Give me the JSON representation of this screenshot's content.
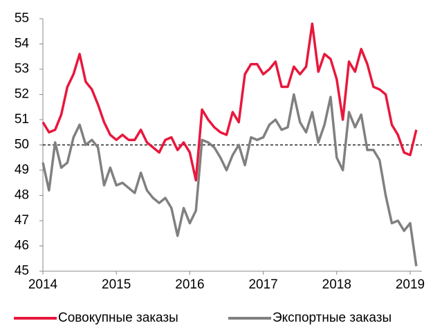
{
  "chart_data": {
    "type": "line",
    "categories": [
      "2014",
      null,
      null,
      null,
      null,
      null,
      null,
      null,
      null,
      null,
      null,
      null,
      "2015",
      null,
      null,
      null,
      null,
      null,
      null,
      null,
      null,
      null,
      null,
      null,
      "2016",
      null,
      null,
      null,
      null,
      null,
      null,
      null,
      null,
      null,
      null,
      null,
      "2017",
      null,
      null,
      null,
      null,
      null,
      null,
      null,
      null,
      null,
      null,
      null,
      "2018",
      null,
      null,
      null,
      null,
      null,
      null,
      null,
      null,
      null,
      null,
      null,
      "2019",
      null
    ],
    "series": [
      {
        "name": "Совокупные заказы",
        "color": "#e8173c",
        "values": [
          50.9,
          50.5,
          50.6,
          51.2,
          52.3,
          52.8,
          53.6,
          52.5,
          52.2,
          51.6,
          50.9,
          50.4,
          50.2,
          50.4,
          50.2,
          50.2,
          50.6,
          50.1,
          49.9,
          49.7,
          50.2,
          50.3,
          49.8,
          50.1,
          49.7,
          48.6,
          51.4,
          51.0,
          50.7,
          50.5,
          50.4,
          51.3,
          50.9,
          52.8,
          53.2,
          53.2,
          52.8,
          53.0,
          53.3,
          52.3,
          52.3,
          53.1,
          52.8,
          53.1,
          54.8,
          52.9,
          53.6,
          53.4,
          52.6,
          51.0,
          53.3,
          52.9,
          53.8,
          53.2,
          52.3,
          52.2,
          52.0,
          50.8,
          50.4,
          49.7,
          49.6,
          50.6
        ]
      },
      {
        "name": "Экспортные заказы",
        "color": "#808080",
        "values": [
          49.3,
          48.2,
          50.1,
          49.1,
          49.3,
          50.3,
          50.8,
          50.0,
          50.2,
          49.9,
          48.4,
          49.1,
          48.4,
          48.5,
          48.3,
          48.1,
          48.9,
          48.2,
          47.9,
          47.7,
          47.9,
          47.5,
          46.4,
          47.5,
          46.9,
          47.4,
          50.2,
          50.1,
          49.9,
          49.5,
          49.0,
          49.6,
          50.0,
          49.2,
          50.3,
          50.2,
          50.3,
          50.8,
          51.0,
          50.6,
          50.7,
          52.0,
          50.9,
          50.5,
          51.3,
          50.1,
          50.8,
          51.9,
          49.5,
          49.0,
          51.3,
          50.7,
          51.2,
          49.8,
          49.8,
          49.4,
          48.0,
          46.9,
          47.0,
          46.6,
          46.9,
          45.2
        ]
      }
    ],
    "ylim": [
      45,
      55
    ],
    "yticks": [
      45,
      46,
      47,
      48,
      49,
      50,
      51,
      52,
      53,
      54,
      55
    ],
    "reference_line": 50,
    "legend": "bottom"
  }
}
